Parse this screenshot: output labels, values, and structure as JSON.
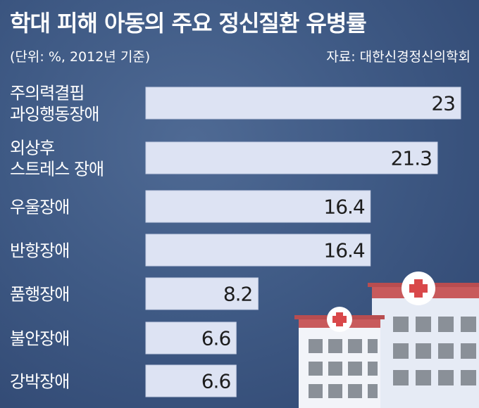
{
  "title": "학대 피해 아동의 주요 정신질환 유병률",
  "unit_note": "(단위: %, 2012년 기준)",
  "source": "자료: 대한신경정신의학회",
  "colors": {
    "bar": "#dde3f3",
    "background": "#3f5a85",
    "text": "#ffffff",
    "value_text": "#1d1d1d"
  },
  "chart_data": {
    "type": "bar",
    "orientation": "horizontal",
    "categories": [
      [
        "주의력결핍",
        "과잉행동장애"
      ],
      [
        "외상후",
        "스트레스 장애"
      ],
      [
        "우울장애"
      ],
      [
        "반항장애"
      ],
      [
        "품행장애"
      ],
      [
        "불안장애"
      ],
      [
        "강박장애"
      ]
    ],
    "values": [
      23,
      21.3,
      16.4,
      16.4,
      8.2,
      6.6,
      6.6
    ],
    "value_labels": [
      "23",
      "21.3",
      "16.4",
      "16.4",
      "8.2",
      "6.6",
      "6.6"
    ],
    "title": "학대 피해 아동의 주요 정신질환 유병률",
    "xlabel": "",
    "ylabel": "",
    "xlim": [
      0,
      23
    ],
    "grid": false,
    "legend": "none"
  }
}
